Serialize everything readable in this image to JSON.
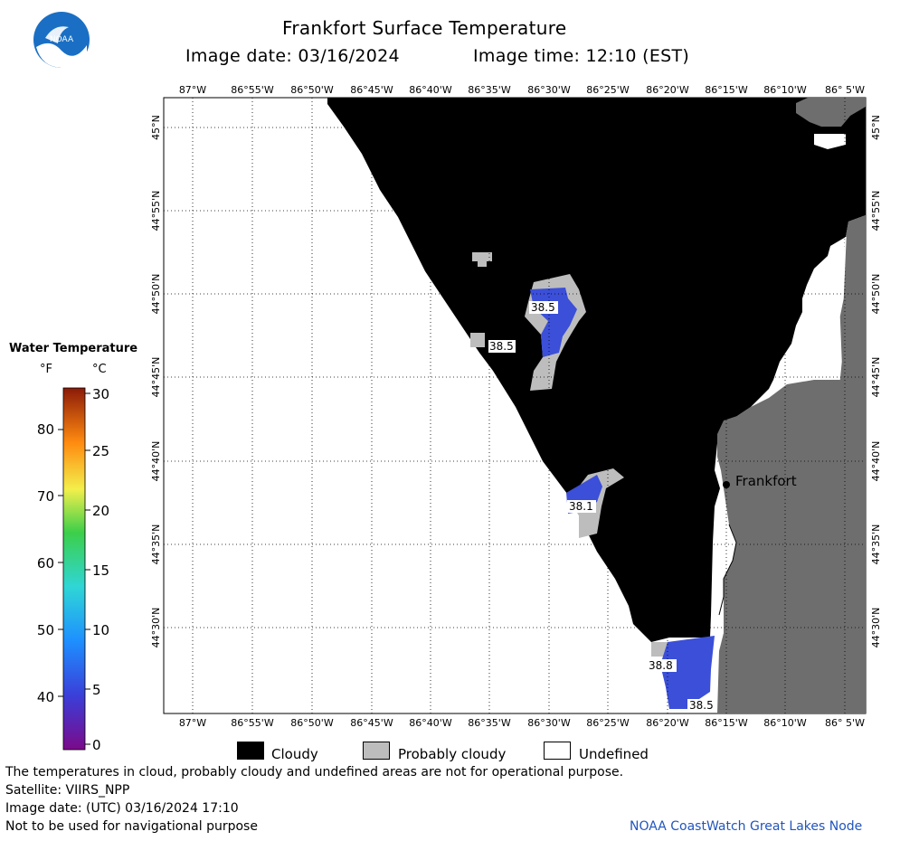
{
  "header": {
    "title": "Frankfort Surface Temperature",
    "image_date": "Image date: 03/16/2024",
    "image_time": "Image time: 12:10 (EST)"
  },
  "logo": {
    "text": "NOAA",
    "color": "#1a6fc4"
  },
  "map": {
    "lon_labels": [
      "87°W",
      "86°55'W",
      "86°50'W",
      "86°45'W",
      "86°40'W",
      "86°35'W",
      "86°30'W",
      "86°25'W",
      "86°20'W",
      "86°15'W",
      "86°10'W",
      "86° 5'W"
    ],
    "lat_labels": [
      "45°N",
      "44°55'N",
      "44°50'N",
      "44°45'N",
      "44°40'N",
      "44°35'N",
      "44°30'N"
    ],
    "city": "Frankfort",
    "temperature_labels": [
      "38.5",
      "38.5",
      "38.1",
      "38.8",
      "38.5"
    ],
    "colors": {
      "cloudy": "#000000",
      "probably_cloudy": "#bdbdbd",
      "land": "#6e6e6e",
      "water_temp": "#3b4fd8",
      "undefined": "#ffffff"
    }
  },
  "legend": {
    "title": "Water Temperature",
    "unit_f": "°F",
    "unit_c": "°C",
    "f_ticks": [
      "80",
      "70",
      "60",
      "50",
      "40"
    ],
    "c_ticks": [
      "30",
      "25",
      "20",
      "15",
      "10",
      "5",
      "0"
    ]
  },
  "key": {
    "cloudy": "Cloudy",
    "probably_cloudy": "Probably cloudy",
    "undefined": "Undefined"
  },
  "footer": {
    "line1": "The temperatures in cloud, probably cloudy and undefined areas are not for operational purpose.",
    "line2": "Satellite: VIIRS_NPP",
    "line3": "Image date: (UTC) 03/16/2024  17:10",
    "line4": "Not to be used for navigational purpose",
    "credit": "NOAA CoastWatch Great Lakes Node"
  }
}
